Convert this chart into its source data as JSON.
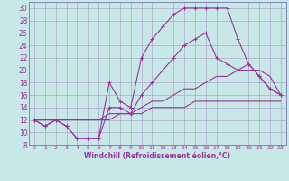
{
  "xlabel": "Windchill (Refroidissement éolien,°C)",
  "bg_color": "#c8e8e8",
  "line_color": "#993399",
  "grid_color": "#aaaacc",
  "spine_color": "#7777aa",
  "xlim": [
    -0.5,
    23.5
  ],
  "ylim": [
    8,
    31
  ],
  "xticks": [
    0,
    1,
    2,
    3,
    4,
    5,
    6,
    7,
    8,
    9,
    10,
    11,
    12,
    13,
    14,
    15,
    16,
    17,
    18,
    19,
    20,
    21,
    22,
    23
  ],
  "yticks": [
    8,
    10,
    12,
    14,
    16,
    18,
    20,
    22,
    24,
    26,
    28,
    30
  ],
  "series1_x": [
    0,
    1,
    2,
    3,
    4,
    5,
    6,
    7,
    8,
    9,
    10,
    11,
    12,
    13,
    14,
    15,
    16,
    17,
    18,
    19,
    20,
    21,
    22,
    23
  ],
  "series1_y": [
    12,
    11,
    12,
    11,
    9,
    9,
    9,
    18,
    15,
    14,
    22,
    25,
    27,
    29,
    30,
    30,
    30,
    30,
    30,
    25,
    21,
    19,
    17,
    16
  ],
  "series2_x": [
    0,
    1,
    2,
    3,
    4,
    5,
    6,
    7,
    8,
    9,
    10,
    11,
    12,
    13,
    14,
    15,
    16,
    17,
    18,
    19,
    20,
    21,
    22,
    23
  ],
  "series2_y": [
    12,
    11,
    12,
    11,
    9,
    9,
    9,
    14,
    14,
    13,
    16,
    18,
    20,
    22,
    24,
    25,
    26,
    22,
    21,
    20,
    21,
    19,
    17,
    16
  ],
  "series3_x": [
    0,
    1,
    2,
    3,
    4,
    5,
    6,
    7,
    8,
    9,
    10,
    11,
    12,
    13,
    14,
    15,
    16,
    17,
    18,
    19,
    20,
    21,
    22,
    23
  ],
  "series3_y": [
    12,
    12,
    12,
    12,
    12,
    12,
    12,
    13,
    13,
    13,
    14,
    15,
    15,
    16,
    17,
    17,
    18,
    19,
    19,
    20,
    20,
    20,
    19,
    16
  ],
  "series4_x": [
    0,
    1,
    2,
    3,
    4,
    5,
    6,
    7,
    8,
    9,
    10,
    11,
    12,
    13,
    14,
    15,
    16,
    17,
    18,
    19,
    20,
    21,
    22,
    23
  ],
  "series4_y": [
    12,
    12,
    12,
    12,
    12,
    12,
    12,
    12,
    13,
    13,
    13,
    14,
    14,
    14,
    14,
    15,
    15,
    15,
    15,
    15,
    15,
    15,
    15,
    15
  ]
}
